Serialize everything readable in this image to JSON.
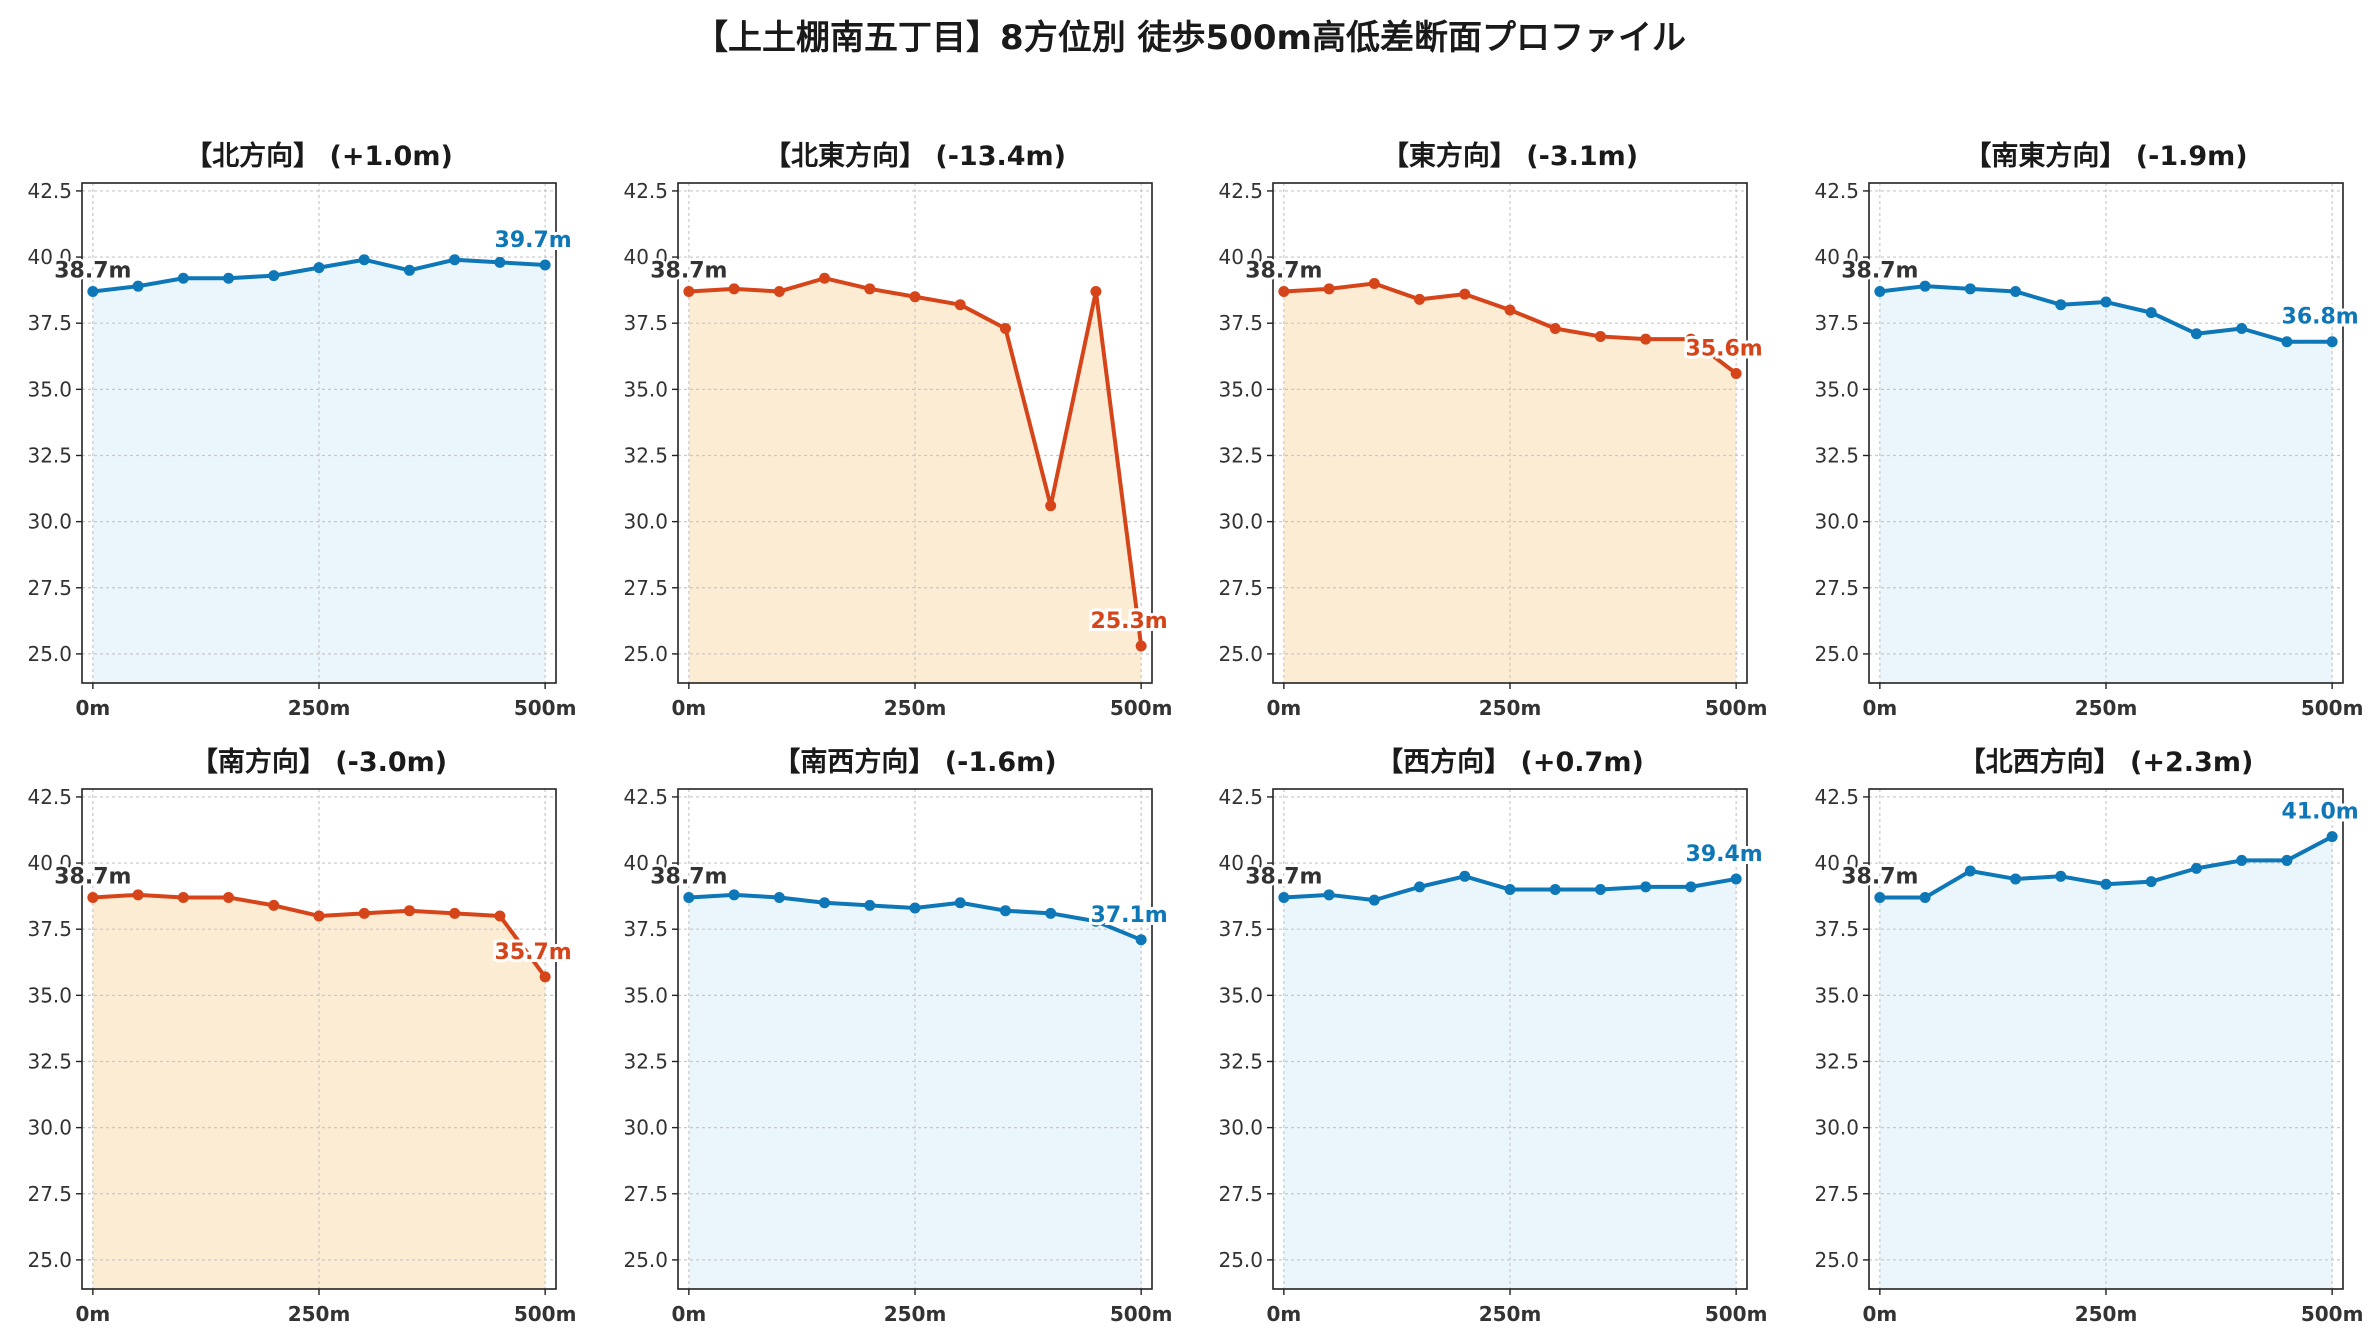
{
  "title": "【上土棚南五丁目】8方位別 徒歩500m高低差断面プロファイル",
  "colors": {
    "rise_line": "#0e77b8",
    "rise_fill": "#eaf6fc",
    "fall_line": "#d6451a",
    "fall_fill": "#fdecd4",
    "grid": "#c8c8c8",
    "tick_text": "#333333",
    "start_label": "#333333"
  },
  "chart_data": [
    {
      "type": "area",
      "title": "【北方向】 (+1.0m)",
      "trend": "rise",
      "x": [
        0,
        50,
        100,
        150,
        200,
        250,
        300,
        350,
        400,
        450,
        500
      ],
      "y": [
        38.7,
        38.9,
        39.2,
        39.2,
        39.3,
        39.6,
        39.9,
        39.5,
        39.9,
        39.8,
        39.7
      ],
      "start_label": "38.7m",
      "end_label": "39.7m",
      "xticks": [
        0,
        250,
        500
      ],
      "xtick_labels": [
        "0m",
        "250m",
        "500m"
      ],
      "yticks": [
        25.0,
        27.5,
        30.0,
        32.5,
        35.0,
        37.5,
        40.0,
        42.5
      ],
      "ytick_labels": [
        "25.0",
        "27.5",
        "30.0",
        "32.5",
        "35.0",
        "37.5",
        "40.0",
        "42.5"
      ],
      "ylim": [
        23.9,
        42.8
      ],
      "xlim": [
        -12,
        512
      ],
      "grid": true
    },
    {
      "type": "area",
      "title": "【北東方向】 (-13.4m)",
      "trend": "fall",
      "x": [
        0,
        50,
        100,
        150,
        200,
        250,
        300,
        350,
        400,
        450,
        500
      ],
      "y": [
        38.7,
        38.8,
        38.7,
        39.2,
        38.8,
        38.5,
        38.2,
        37.3,
        30.6,
        38.7,
        25.3
      ],
      "start_label": "38.7m",
      "end_label": "25.3m",
      "xticks": [
        0,
        250,
        500
      ],
      "xtick_labels": [
        "0m",
        "250m",
        "500m"
      ],
      "yticks": [
        25.0,
        27.5,
        30.0,
        32.5,
        35.0,
        37.5,
        40.0,
        42.5
      ],
      "ytick_labels": [
        "25.0",
        "27.5",
        "30.0",
        "32.5",
        "35.0",
        "37.5",
        "40.0",
        "42.5"
      ],
      "ylim": [
        23.9,
        42.8
      ],
      "xlim": [
        -12,
        512
      ],
      "grid": true
    },
    {
      "type": "area",
      "title": "【東方向】 (-3.1m)",
      "trend": "fall",
      "x": [
        0,
        50,
        100,
        150,
        200,
        250,
        300,
        350,
        400,
        450,
        500
      ],
      "y": [
        38.7,
        38.8,
        39.0,
        38.4,
        38.6,
        38.0,
        37.3,
        37.0,
        36.9,
        36.9,
        35.6
      ],
      "start_label": "38.7m",
      "end_label": "35.6m",
      "xticks": [
        0,
        250,
        500
      ],
      "xtick_labels": [
        "0m",
        "250m",
        "500m"
      ],
      "yticks": [
        25.0,
        27.5,
        30.0,
        32.5,
        35.0,
        37.5,
        40.0,
        42.5
      ],
      "ytick_labels": [
        "25.0",
        "27.5",
        "30.0",
        "32.5",
        "35.0",
        "37.5",
        "40.0",
        "42.5"
      ],
      "ylim": [
        23.9,
        42.8
      ],
      "xlim": [
        -12,
        512
      ],
      "grid": true
    },
    {
      "type": "area",
      "title": "【南東方向】 (-1.9m)",
      "trend": "rise",
      "x": [
        0,
        50,
        100,
        150,
        200,
        250,
        300,
        350,
        400,
        450,
        500
      ],
      "y": [
        38.7,
        38.9,
        38.8,
        38.7,
        38.2,
        38.3,
        37.9,
        37.1,
        37.3,
        36.8,
        36.8
      ],
      "start_label": "38.7m",
      "end_label": "36.8m",
      "xticks": [
        0,
        250,
        500
      ],
      "xtick_labels": [
        "0m",
        "250m",
        "500m"
      ],
      "yticks": [
        25.0,
        27.5,
        30.0,
        32.5,
        35.0,
        37.5,
        40.0,
        42.5
      ],
      "ytick_labels": [
        "25.0",
        "27.5",
        "30.0",
        "32.5",
        "35.0",
        "37.5",
        "40.0",
        "42.5"
      ],
      "ylim": [
        23.9,
        42.8
      ],
      "xlim": [
        -12,
        512
      ],
      "grid": true
    },
    {
      "type": "area",
      "title": "【南方向】 (-3.0m)",
      "trend": "fall",
      "x": [
        0,
        50,
        100,
        150,
        200,
        250,
        300,
        350,
        400,
        450,
        500
      ],
      "y": [
        38.7,
        38.8,
        38.7,
        38.7,
        38.4,
        38.0,
        38.1,
        38.2,
        38.1,
        38.0,
        35.7
      ],
      "start_label": "38.7m",
      "end_label": "35.7m",
      "xticks": [
        0,
        250,
        500
      ],
      "xtick_labels": [
        "0m",
        "250m",
        "500m"
      ],
      "yticks": [
        25.0,
        27.5,
        30.0,
        32.5,
        35.0,
        37.5,
        40.0,
        42.5
      ],
      "ytick_labels": [
        "25.0",
        "27.5",
        "30.0",
        "32.5",
        "35.0",
        "37.5",
        "40.0",
        "42.5"
      ],
      "ylim": [
        23.9,
        42.8
      ],
      "xlim": [
        -12,
        512
      ],
      "grid": true
    },
    {
      "type": "area",
      "title": "【南西方向】 (-1.6m)",
      "trend": "rise",
      "x": [
        0,
        50,
        100,
        150,
        200,
        250,
        300,
        350,
        400,
        450,
        500
      ],
      "y": [
        38.7,
        38.8,
        38.7,
        38.5,
        38.4,
        38.3,
        38.5,
        38.2,
        38.1,
        37.8,
        37.1
      ],
      "start_label": "38.7m",
      "end_label": "37.1m",
      "xticks": [
        0,
        250,
        500
      ],
      "xtick_labels": [
        "0m",
        "250m",
        "500m"
      ],
      "yticks": [
        25.0,
        27.5,
        30.0,
        32.5,
        35.0,
        37.5,
        40.0,
        42.5
      ],
      "ytick_labels": [
        "25.0",
        "27.5",
        "30.0",
        "32.5",
        "35.0",
        "37.5",
        "40.0",
        "42.5"
      ],
      "ylim": [
        23.9,
        42.8
      ],
      "xlim": [
        -12,
        512
      ],
      "grid": true
    },
    {
      "type": "area",
      "title": "【西方向】 (+0.7m)",
      "trend": "rise",
      "x": [
        0,
        50,
        100,
        150,
        200,
        250,
        300,
        350,
        400,
        450,
        500
      ],
      "y": [
        38.7,
        38.8,
        38.6,
        39.1,
        39.5,
        39.0,
        39.0,
        39.0,
        39.1,
        39.1,
        39.4
      ],
      "start_label": "38.7m",
      "end_label": "39.4m",
      "xticks": [
        0,
        250,
        500
      ],
      "xtick_labels": [
        "0m",
        "250m",
        "500m"
      ],
      "yticks": [
        25.0,
        27.5,
        30.0,
        32.5,
        35.0,
        37.5,
        40.0,
        42.5
      ],
      "ytick_labels": [
        "25.0",
        "27.5",
        "30.0",
        "32.5",
        "35.0",
        "37.5",
        "40.0",
        "42.5"
      ],
      "ylim": [
        23.9,
        42.8
      ],
      "xlim": [
        -12,
        512
      ],
      "grid": true
    },
    {
      "type": "area",
      "title": "【北西方向】 (+2.3m)",
      "trend": "rise",
      "x": [
        0,
        50,
        100,
        150,
        200,
        250,
        300,
        350,
        400,
        450,
        500
      ],
      "y": [
        38.7,
        38.7,
        39.7,
        39.4,
        39.5,
        39.2,
        39.3,
        39.8,
        40.1,
        40.1,
        41.0
      ],
      "start_label": "38.7m",
      "end_label": "41.0m",
      "xticks": [
        0,
        250,
        500
      ],
      "xtick_labels": [
        "0m",
        "250m",
        "500m"
      ],
      "yticks": [
        25.0,
        27.5,
        30.0,
        32.5,
        35.0,
        37.5,
        40.0,
        42.5
      ],
      "ytick_labels": [
        "25.0",
        "27.5",
        "30.0",
        "32.5",
        "35.0",
        "37.5",
        "40.0",
        "42.5"
      ],
      "ylim": [
        23.9,
        42.8
      ],
      "xlim": [
        -12,
        512
      ],
      "grid": true
    }
  ]
}
